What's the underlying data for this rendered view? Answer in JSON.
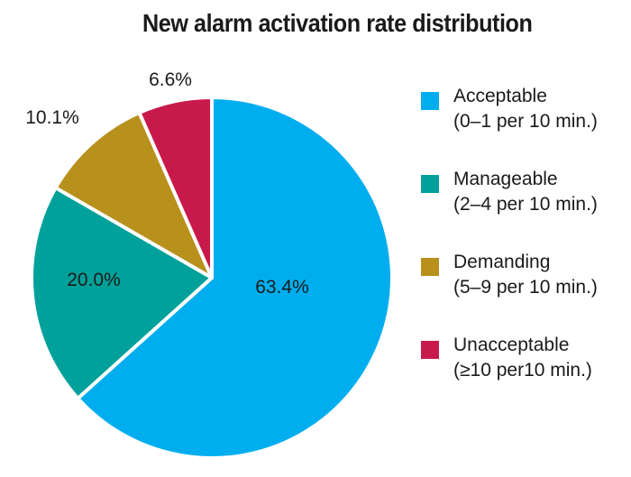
{
  "chart_data": {
    "type": "pie",
    "title": "New alarm activation rate distribution",
    "slices": [
      {
        "label_line1": "Acceptable",
        "label_line2": "(0–1 per 10 min.)",
        "value": 63.4,
        "value_label": "63.4%",
        "color": "#00aeef"
      },
      {
        "label_line1": "Manageable",
        "label_line2": "(2–4 per 10 min.)",
        "value": 20.0,
        "value_label": "20.0%",
        "color": "#00a19a"
      },
      {
        "label_line1": "Demanding",
        "label_line2": "(5–9 per 10 min.)",
        "value": 10.1,
        "value_label": "10.1%",
        "color": "#b8901c"
      },
      {
        "label_line1": "Unacceptable",
        "label_line2": "(≥10 per10 min.)",
        "value": 6.6,
        "value_label": "6.6%",
        "color": "#c8194b"
      }
    ],
    "legend_position": "right"
  }
}
